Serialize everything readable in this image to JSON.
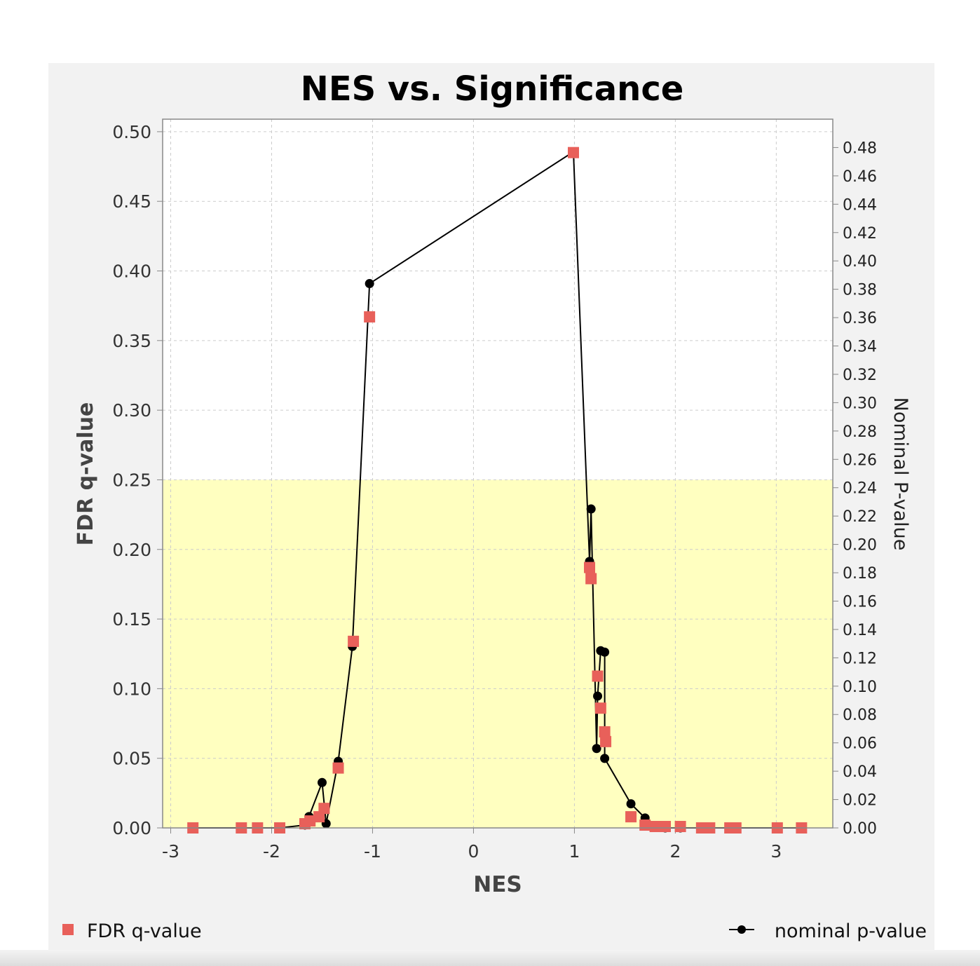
{
  "chart_data": {
    "type": "scatter",
    "title": "NES vs. Significance",
    "xlabel": "NES",
    "ylabel": "FDR q-value",
    "ylabel_right": "Nominal P-value",
    "xlim": [
      -3.08,
      3.56
    ],
    "ylim": [
      0,
      0.509
    ],
    "ylim_right": [
      0,
      0.5
    ],
    "x_ticks": [
      "-3",
      "-2",
      "-1",
      "0",
      "1",
      "2",
      "3"
    ],
    "y_ticks": [
      "0.00",
      "0.05",
      "0.10",
      "0.15",
      "0.20",
      "0.25",
      "0.30",
      "0.35",
      "0.40",
      "0.45",
      "0.50"
    ],
    "y_ticks_right": [
      "0.00",
      "0.02",
      "0.04",
      "0.06",
      "0.08",
      "0.10",
      "0.12",
      "0.14",
      "0.16",
      "0.18",
      "0.20",
      "0.22",
      "0.24",
      "0.26",
      "0.28",
      "0.30",
      "0.32",
      "0.34",
      "0.36",
      "0.38",
      "0.40",
      "0.42",
      "0.44",
      "0.46",
      "0.48"
    ],
    "grid": true,
    "significance_band": {
      "from": 0,
      "to": 0.25,
      "color": "#ffffc0"
    },
    "legend": {
      "placement": "bottom"
    },
    "series": [
      {
        "name": "FDR q-value",
        "marker": "square",
        "color": "#e8605a",
        "axis": "left",
        "x": [
          -2.78,
          -2.3,
          -2.14,
          -1.92,
          -1.67,
          -1.62,
          -1.53,
          -1.48,
          -1.34,
          -1.19,
          -1.03,
          0.99,
          1.15,
          1.165,
          1.23,
          1.26,
          1.3,
          1.31,
          1.56,
          1.7,
          1.8,
          1.9,
          2.05,
          2.26,
          2.34,
          2.54,
          2.6,
          3.01,
          3.25
        ],
        "y": [
          0,
          0,
          0,
          0,
          0.003,
          0.005,
          0.008,
          0.014,
          0.043,
          0.134,
          0.367,
          0.485,
          0.187,
          0.179,
          0.109,
          0.086,
          0.069,
          0.062,
          0.008,
          0.002,
          0.001,
          0.001,
          0.001,
          0,
          0,
          0,
          0,
          0,
          0
        ]
      },
      {
        "name": "nominal p-value",
        "marker": "circle-line",
        "color": "#000000",
        "axis": "right",
        "x": [
          -2.78,
          -2.3,
          -2.14,
          -1.92,
          -1.67,
          -1.63,
          -1.5,
          -1.46,
          -1.34,
          -1.2,
          -1.03,
          0.99,
          1.165,
          1.15,
          1.26,
          1.3,
          1.23,
          1.22,
          1.3,
          1.56,
          1.7,
          1.8,
          1.9,
          2.05,
          2.26,
          2.34,
          2.54,
          2.6,
          3.01,
          3.25
        ],
        "y": [
          0,
          0,
          0,
          0,
          0.002,
          0.008,
          0.032,
          0.003,
          0.047,
          0.128,
          0.384,
          0.477,
          0.225,
          0.188,
          0.125,
          0.124,
          0.093,
          0.056,
          0.049,
          0.017,
          0.007,
          0.001,
          0,
          0,
          0,
          0,
          0,
          0,
          0,
          0
        ]
      }
    ]
  }
}
